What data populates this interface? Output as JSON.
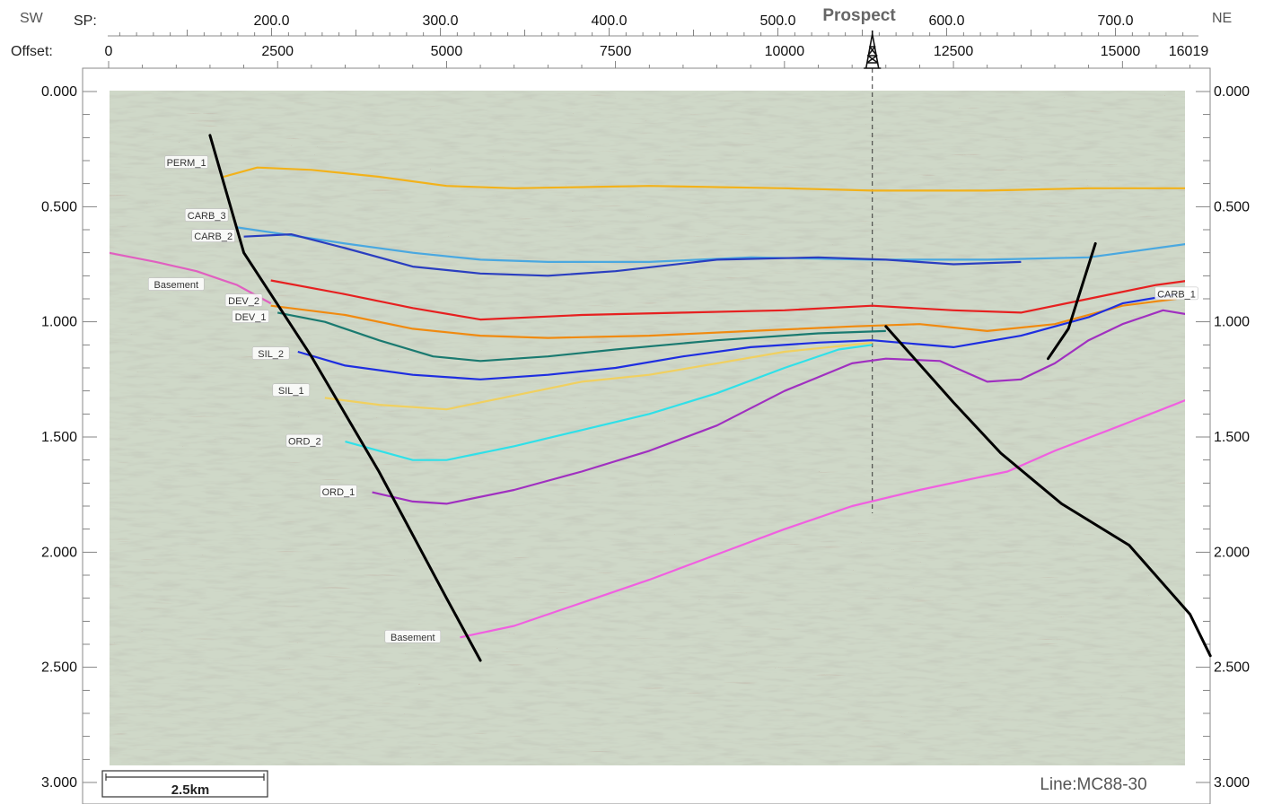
{
  "header": {
    "sw_label": "SW",
    "ne_label": "NE",
    "sp_label": "SP:",
    "offset_label": "Offset:",
    "prospect_label": "Prospect"
  },
  "sp_axis": {
    "labels": [
      "200.0",
      "300.0",
      "400.0",
      "500.0",
      "600.0",
      "700.0"
    ],
    "values": [
      200,
      300,
      400,
      500,
      600,
      700
    ]
  },
  "offset_axis": {
    "labels": [
      "0",
      "2500",
      "5000",
      "7500",
      "10000",
      "12500",
      "15000",
      "16019"
    ],
    "values": [
      0,
      2500,
      5000,
      7500,
      10000,
      12500,
      15000,
      16019
    ]
  },
  "time_axis": {
    "labels": [
      "0.000",
      "0.500",
      "1.000",
      "1.500",
      "2.000",
      "2.500",
      "3.000"
    ],
    "values": [
      0,
      0.5,
      1.0,
      1.5,
      2.0,
      2.5,
      3.0
    ]
  },
  "scale_bar": {
    "label": "2.5km"
  },
  "line_name": "Line:MC88-30",
  "prospect": {
    "offset": 11300
  },
  "horizons": [
    {
      "name": "PERM_1",
      "color": "#f2b21b",
      "points": [
        [
          1700,
          0.37
        ],
        [
          2200,
          0.33
        ],
        [
          3000,
          0.34
        ],
        [
          4000,
          0.37
        ],
        [
          5000,
          0.41
        ],
        [
          6000,
          0.42
        ],
        [
          8000,
          0.41
        ],
        [
          10000,
          0.42
        ],
        [
          11300,
          0.43
        ],
        [
          13000,
          0.43
        ],
        [
          14500,
          0.42
        ],
        [
          16000,
          0.42
        ]
      ]
    },
    {
      "name": "CARB_3",
      "color": "#4aa8e0",
      "points": [
        [
          1900,
          0.59
        ],
        [
          2600,
          0.62
        ],
        [
          3500,
          0.66
        ],
        [
          4500,
          0.7
        ],
        [
          5500,
          0.73
        ],
        [
          6500,
          0.74
        ],
        [
          8000,
          0.74
        ],
        [
          9500,
          0.72
        ],
        [
          11300,
          0.73
        ],
        [
          13000,
          0.73
        ],
        [
          14500,
          0.72
        ],
        [
          16000,
          0.66
        ]
      ]
    },
    {
      "name": "CARB_2",
      "color": "#2a3ec0",
      "points": [
        [
          2000,
          0.63
        ],
        [
          2700,
          0.62
        ],
        [
          3500,
          0.68
        ],
        [
          4500,
          0.76
        ],
        [
          5500,
          0.79
        ],
        [
          6500,
          0.8
        ],
        [
          7500,
          0.78
        ],
        [
          9000,
          0.73
        ],
        [
          10500,
          0.72
        ],
        [
          11500,
          0.73
        ],
        [
          12500,
          0.75
        ],
        [
          13500,
          0.74
        ]
      ]
    },
    {
      "name": "CARB_1",
      "color": "#e62020",
      "points": [
        [
          2400,
          0.82
        ],
        [
          3500,
          0.88
        ],
        [
          4500,
          0.94
        ],
        [
          5500,
          0.99
        ],
        [
          7000,
          0.97
        ],
        [
          8500,
          0.96
        ],
        [
          10000,
          0.95
        ],
        [
          11300,
          0.93
        ],
        [
          12500,
          0.95
        ],
        [
          13500,
          0.96
        ],
        [
          14500,
          0.9
        ],
        [
          15500,
          0.84
        ],
        [
          16000,
          0.82
        ]
      ]
    },
    {
      "name": "Basement_upper",
      "color": "#e060c0",
      "points": [
        [
          0,
          0.7
        ],
        [
          700,
          0.74
        ],
        [
          1300,
          0.78
        ],
        [
          1900,
          0.84
        ],
        [
          2400,
          0.92
        ]
      ]
    },
    {
      "name": "DEV_2",
      "color": "#f08a10",
      "points": [
        [
          2400,
          0.93
        ],
        [
          3500,
          0.97
        ],
        [
          4500,
          1.03
        ],
        [
          5500,
          1.06
        ],
        [
          6500,
          1.07
        ],
        [
          8000,
          1.06
        ],
        [
          9500,
          1.04
        ],
        [
          11000,
          1.02
        ],
        [
          12000,
          1.01
        ],
        [
          13000,
          1.04
        ],
        [
          14000,
          1.01
        ],
        [
          15000,
          0.93
        ],
        [
          15800,
          0.9
        ]
      ]
    },
    {
      "name": "DEV_1",
      "color": "#1a7a70",
      "points": [
        [
          2500,
          0.96
        ],
        [
          3200,
          1.0
        ],
        [
          4000,
          1.08
        ],
        [
          4800,
          1.15
        ],
        [
          5500,
          1.17
        ],
        [
          6500,
          1.15
        ],
        [
          7500,
          1.12
        ],
        [
          9000,
          1.08
        ],
        [
          10500,
          1.05
        ],
        [
          11500,
          1.04
        ]
      ]
    },
    {
      "name": "SIL_2",
      "color": "#1e2ee0",
      "points": [
        [
          2800,
          1.13
        ],
        [
          3500,
          1.19
        ],
        [
          4500,
          1.23
        ],
        [
          5500,
          1.25
        ],
        [
          6500,
          1.23
        ],
        [
          7500,
          1.2
        ],
        [
          8500,
          1.15
        ],
        [
          9500,
          1.11
        ],
        [
          10500,
          1.09
        ],
        [
          11300,
          1.08
        ],
        [
          12500,
          1.11
        ],
        [
          13500,
          1.06
        ],
        [
          14500,
          0.98
        ],
        [
          15000,
          0.92
        ],
        [
          15800,
          0.88
        ]
      ]
    },
    {
      "name": "SIL_1",
      "color": "#f0d060",
      "points": [
        [
          3200,
          1.33
        ],
        [
          4000,
          1.36
        ],
        [
          5000,
          1.38
        ],
        [
          6000,
          1.32
        ],
        [
          7000,
          1.26
        ],
        [
          8000,
          1.23
        ],
        [
          9000,
          1.18
        ],
        [
          10000,
          1.13
        ],
        [
          11000,
          1.1
        ],
        [
          11300,
          1.09
        ]
      ]
    },
    {
      "name": "ORD_2",
      "color": "#30e0e8",
      "points": [
        [
          3500,
          1.52
        ],
        [
          4500,
          1.6
        ],
        [
          5000,
          1.6
        ],
        [
          6000,
          1.54
        ],
        [
          7000,
          1.47
        ],
        [
          8000,
          1.4
        ],
        [
          9000,
          1.31
        ],
        [
          10000,
          1.2
        ],
        [
          10800,
          1.12
        ],
        [
          11300,
          1.1
        ]
      ]
    },
    {
      "name": "ORD_1",
      "color": "#a030c0",
      "points": [
        [
          3900,
          1.74
        ],
        [
          4500,
          1.78
        ],
        [
          5000,
          1.79
        ],
        [
          6000,
          1.73
        ],
        [
          7000,
          1.65
        ],
        [
          8000,
          1.56
        ],
        [
          9000,
          1.45
        ],
        [
          10000,
          1.3
        ],
        [
          11000,
          1.18
        ],
        [
          11500,
          1.16
        ],
        [
          12300,
          1.17
        ],
        [
          13000,
          1.26
        ],
        [
          13500,
          1.25
        ],
        [
          14000,
          1.18
        ],
        [
          14500,
          1.08
        ],
        [
          15000,
          1.01
        ],
        [
          15600,
          0.95
        ],
        [
          16019,
          0.97
        ]
      ]
    },
    {
      "name": "Basement_lower",
      "color": "#f060e0",
      "points": [
        [
          5200,
          2.37
        ],
        [
          6000,
          2.32
        ],
        [
          7000,
          2.22
        ],
        [
          8000,
          2.12
        ],
        [
          9000,
          2.01
        ],
        [
          10000,
          1.9
        ],
        [
          11000,
          1.8
        ],
        [
          12000,
          1.73
        ],
        [
          12800,
          1.68
        ],
        [
          13300,
          1.65
        ],
        [
          14000,
          1.56
        ],
        [
          14800,
          1.47
        ],
        [
          15500,
          1.39
        ],
        [
          16019,
          1.33
        ]
      ]
    }
  ],
  "horizon_labels": [
    {
      "text": "PERM_1",
      "offset": 1150,
      "time": 0.31
    },
    {
      "text": "CARB_3",
      "offset": 1450,
      "time": 0.54
    },
    {
      "text": "CARB_2",
      "offset": 1550,
      "time": 0.63
    },
    {
      "text": "Basement",
      "offset": 1000,
      "time": 0.84
    },
    {
      "text": "DEV_2",
      "offset": 2000,
      "time": 0.91
    },
    {
      "text": "DEV_1",
      "offset": 2100,
      "time": 0.98
    },
    {
      "text": "SIL_2",
      "offset": 2400,
      "time": 1.14
    },
    {
      "text": "SIL_1",
      "offset": 2700,
      "time": 1.3
    },
    {
      "text": "ORD_2",
      "offset": 2900,
      "time": 1.52
    },
    {
      "text": "ORD_1",
      "offset": 3400,
      "time": 1.74
    },
    {
      "text": "Basement",
      "offset": 4500,
      "time": 2.37
    },
    {
      "text": "CARB_1",
      "offset": 15800,
      "time": 0.88
    }
  ],
  "faults": [
    {
      "name": "fault-main-west",
      "points": [
        [
          1500,
          0.19
        ],
        [
          2000,
          0.7
        ],
        [
          3000,
          1.15
        ],
        [
          4000,
          1.65
        ],
        [
          5000,
          2.2
        ],
        [
          5500,
          2.47
        ]
      ]
    },
    {
      "name": "fault-east",
      "points": [
        [
          11500,
          1.02
        ],
        [
          12500,
          1.35
        ],
        [
          13200,
          1.57
        ],
        [
          14100,
          1.79
        ],
        [
          15100,
          1.97
        ],
        [
          16000,
          2.27
        ],
        [
          16300,
          2.45
        ]
      ]
    },
    {
      "name": "fault-northeast",
      "points": [
        [
          14600,
          0.66
        ],
        [
          14200,
          1.03
        ],
        [
          13900,
          1.16
        ]
      ]
    }
  ]
}
